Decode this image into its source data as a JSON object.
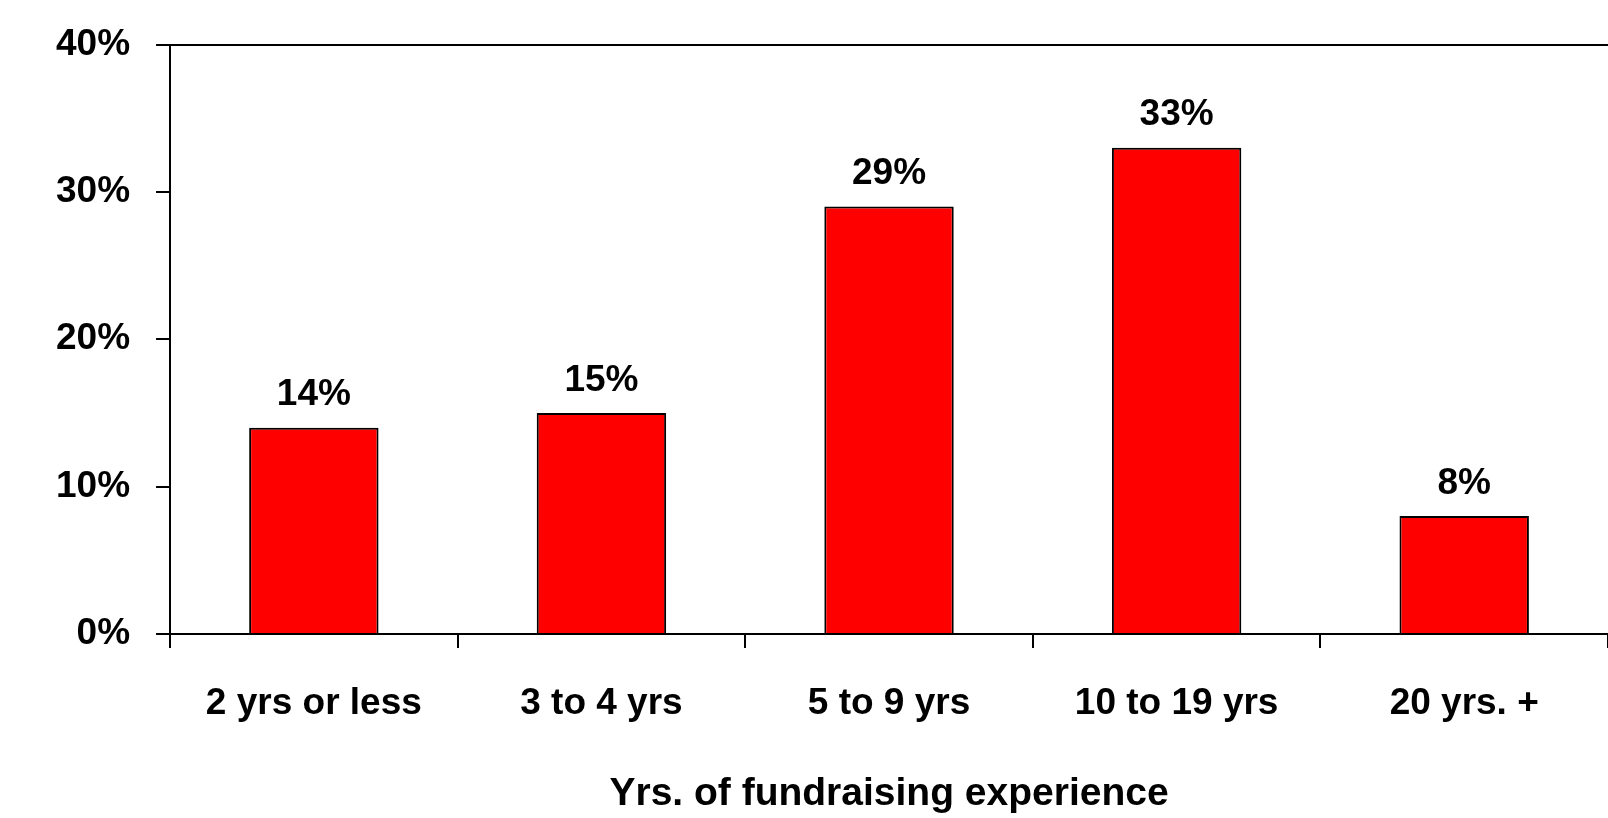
{
  "chart_data": {
    "type": "bar",
    "xlabel": "Yrs. of fundraising experience",
    "categories": [
      "2 yrs or less",
      "3 to 4 yrs",
      "5 to 9 yrs",
      "10 to 19 yrs",
      "20 yrs. +"
    ],
    "values": [
      14,
      15,
      29,
      33,
      8
    ],
    "value_labels": [
      "14%",
      "15%",
      "29%",
      "33%",
      "8%"
    ],
    "color": "#ff0000",
    "ylim": [
      0,
      40
    ],
    "yticks": [
      {
        "value": 0,
        "label": "0%"
      },
      {
        "value": 10,
        "label": "10%"
      },
      {
        "value": 20,
        "label": "20%"
      },
      {
        "value": 30,
        "label": "30%"
      },
      {
        "value": 40,
        "label": "40%"
      }
    ],
    "grid": false
  }
}
